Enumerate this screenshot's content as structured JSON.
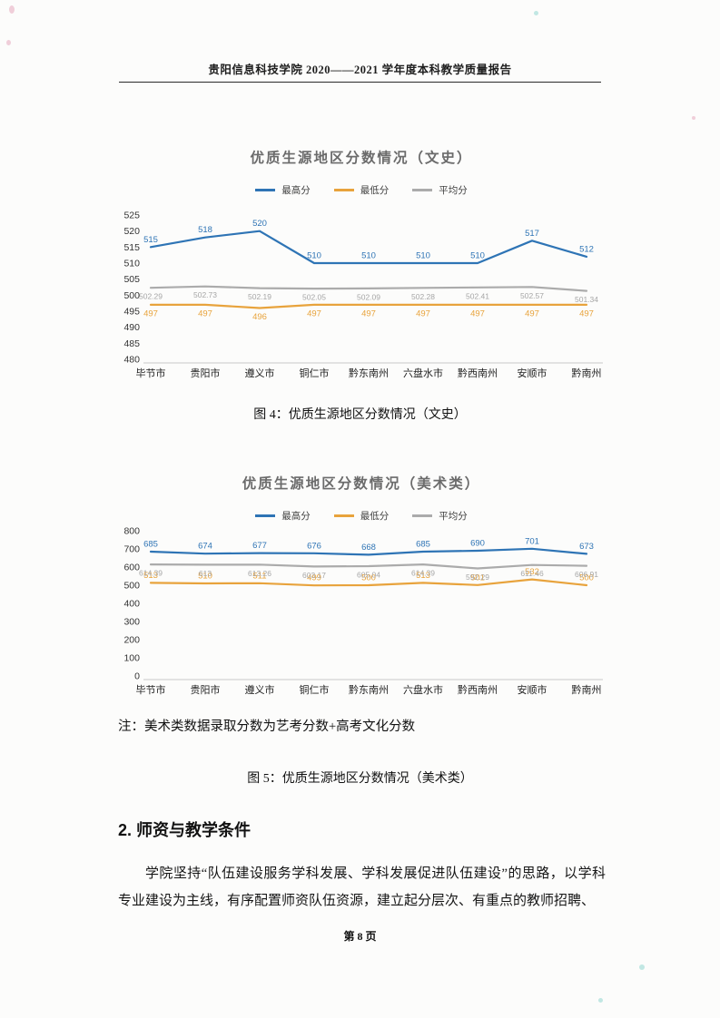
{
  "page": {
    "header": "贵阳信息科技学院 2020——2021 学年度本科教学质量报告",
    "caption_fig4": "图 4：优质生源地区分数情况（文史）",
    "caption_fig5": "图 5：优质生源地区分数情况（美术类）",
    "note": "注：美术类数据录取分数为艺考分数+高考文化分数",
    "section_heading": "2. 师资与教学条件",
    "paragraph": "学院坚持“队伍建设服务学科发展、学科发展促进队伍建设”的思路，以学科专业建设为主线，有序配置师资队伍资源，建立起分层次、有重点的教师招聘、",
    "footer": "第 8 页"
  },
  "colors": {
    "series_max": "#2E74B5",
    "series_min": "#E8A33C",
    "series_avg": "#ABABAB"
  },
  "chart_data": [
    {
      "type": "line",
      "title": "优质生源地区分数情况（文史）",
      "categories": [
        "毕节市",
        "贵阳市",
        "遵义市",
        "铜仁市",
        "黔东南州",
        "六盘水市",
        "黔西南州",
        "安顺市",
        "黔南州"
      ],
      "ylim": [
        480,
        525
      ],
      "ytick_step": 5,
      "grid": false,
      "legend_position": "top",
      "series": [
        {
          "name": "最高分",
          "color": "#2E74B5",
          "label_side": "above",
          "values": [
            515,
            518,
            520,
            510,
            510,
            510,
            510,
            517,
            512
          ]
        },
        {
          "name": "最低分",
          "color": "#E8A33C",
          "label_side": "below",
          "values": [
            497,
            497,
            496,
            497,
            497,
            497,
            497,
            497,
            497
          ]
        },
        {
          "name": "平均分",
          "color": "#ABABAB",
          "label_side": "below",
          "label_size": "small",
          "label_color": "#A6A6A6",
          "values": [
            502.29,
            502.73,
            502.19,
            502.05,
            502.09,
            502.28,
            502.41,
            502.57,
            501.34
          ]
        }
      ]
    },
    {
      "type": "line",
      "title": "优质生源地区分数情况（美术类）",
      "categories": [
        "毕节市",
        "贵阳市",
        "遵义市",
        "铜仁市",
        "黔东南州",
        "六盘水市",
        "黔西南州",
        "安顺市",
        "黔南州"
      ],
      "ylim": [
        0,
        800
      ],
      "ytick_step": 100,
      "grid": false,
      "legend_position": "top",
      "series": [
        {
          "name": "最高分",
          "color": "#2E74B5",
          "label_side": "above",
          "values": [
            685,
            674,
            677,
            676,
            668,
            685,
            690,
            701,
            673
          ]
        },
        {
          "name": "最低分",
          "color": "#E8A33C",
          "label_side": "above",
          "values": [
            513,
            510,
            511,
            499,
            500,
            513,
            501,
            532,
            500
          ]
        },
        {
          "name": "平均分",
          "color": "#ABABAB",
          "label_side": "below",
          "label_size": "small",
          "label_color": "#A6A6A6",
          "values": [
            614.39,
            613,
            613.26,
            603.17,
            605.04,
            614.39,
            592.29,
            611.46,
            606.91
          ]
        }
      ]
    }
  ]
}
